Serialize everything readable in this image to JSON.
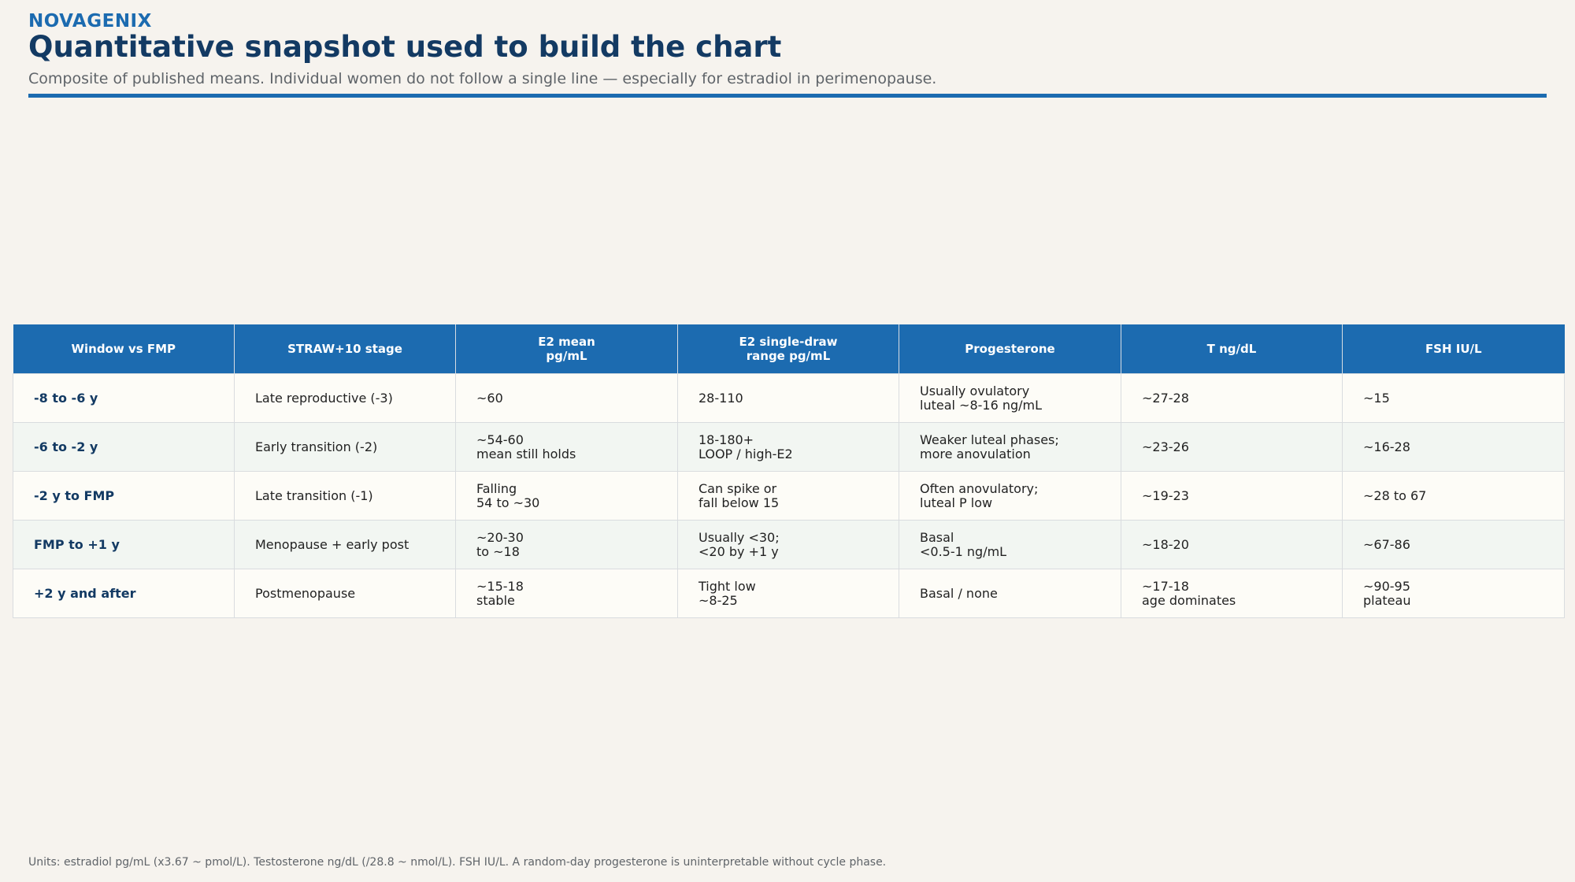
{
  "header": {
    "brand": "NOVAGENIX",
    "title": "Quantitative snapshot used to build the chart",
    "subtitle": "Composite of published means. Individual women do not follow a single line — especially for estradiol in perimenopause."
  },
  "colors": {
    "accent": "#1c6bb0",
    "title": "#133a63",
    "background": "#f6f3ee"
  },
  "table": {
    "columns": [
      "Window vs FMP",
      "STRAW+10 stage",
      "E2 mean\npg/mL",
      "E2 single-draw\nrange pg/mL",
      "Progesterone",
      "T ng/dL",
      "FSH IU/L"
    ],
    "rows": [
      [
        "-8 to -6 y",
        "Late reproductive (-3)",
        "~60",
        "28-110",
        "Usually ovulatory\nluteal ~8-16 ng/mL",
        "~27-28",
        "~15"
      ],
      [
        "-6 to -2 y",
        "Early transition (-2)",
        "~54-60\nmean still holds",
        "18-180+\nLOOP / high-E2",
        "Weaker luteal phases;\nmore anovulation",
        "~23-26",
        "~16-28"
      ],
      [
        "-2 y to FMP",
        "Late transition (-1)",
        "Falling\n54 to ~30",
        "Can spike or\nfall below 15",
        "Often anovulatory;\nluteal P low",
        "~19-23",
        "~28 to 67"
      ],
      [
        "FMP to +1 y",
        "Menopause + early post",
        "~20-30\nto ~18",
        "Usually <30;\n<20 by +1 y",
        "Basal\n<0.5-1 ng/mL",
        "~18-20",
        "~67-86"
      ],
      [
        "+2 y and after",
        "Postmenopause",
        "~15-18\nstable",
        "Tight low\n~8-25",
        "Basal / none",
        "~17-18\nage dominates",
        "~90-95\nplateau"
      ]
    ]
  },
  "footnote": "Units: estradiol pg/mL (x3.67 ~ pmol/L). Testosterone ng/dL (/28.8 ~ nmol/L). FSH IU/L. A random-day progesterone is uninterpretable without cycle phase."
}
